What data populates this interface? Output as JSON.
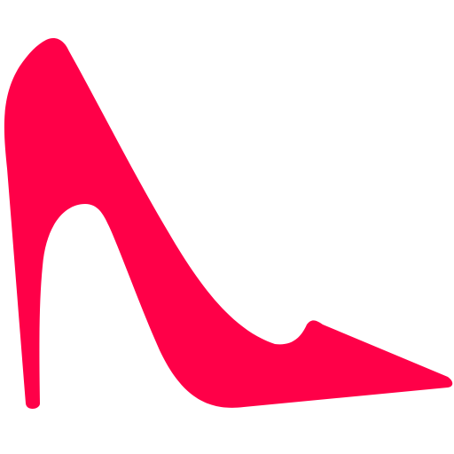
{
  "icon": {
    "name": "high-heel-shoe-icon",
    "color": "#FF0048",
    "background": "#FFFFFF"
  }
}
